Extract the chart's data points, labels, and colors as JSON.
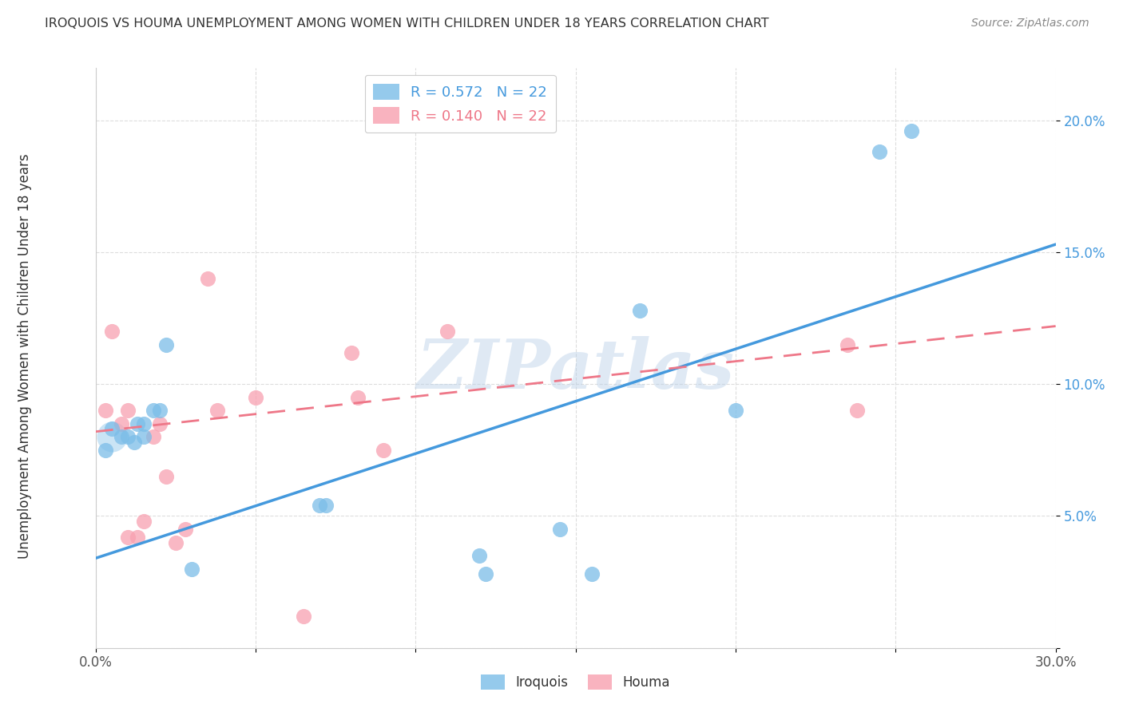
{
  "title": "IROQUOIS VS HOUMA UNEMPLOYMENT AMONG WOMEN WITH CHILDREN UNDER 18 YEARS CORRELATION CHART",
  "source": "Source: ZipAtlas.com",
  "ylabel": "Unemployment Among Women with Children Under 18 years",
  "watermark": "ZIPatlas",
  "xlim": [
    0.0,
    0.3
  ],
  "ylim": [
    0.0,
    0.22
  ],
  "iroquois_R": 0.572,
  "iroquois_N": 22,
  "houma_R": 0.14,
  "houma_N": 22,
  "iroquois_color": "#7bbde8",
  "houma_color": "#f8a0b0",
  "iroquois_line_color": "#4499dd",
  "houma_line_color": "#ee7788",
  "background_color": "#ffffff",
  "grid_color": "#dddddd",
  "iroquois_line_x0": 0.0,
  "iroquois_line_y0": 0.034,
  "iroquois_line_x1": 0.3,
  "iroquois_line_y1": 0.153,
  "houma_line_x0": 0.0,
  "houma_line_y0": 0.082,
  "houma_line_x1": 0.3,
  "houma_line_y1": 0.122,
  "iroquois_x": [
    0.003,
    0.005,
    0.008,
    0.01,
    0.012,
    0.013,
    0.015,
    0.015,
    0.018,
    0.02,
    0.022,
    0.03,
    0.07,
    0.072,
    0.12,
    0.122,
    0.145,
    0.155,
    0.17,
    0.2,
    0.245,
    0.255
  ],
  "iroquois_y": [
    0.075,
    0.083,
    0.08,
    0.08,
    0.078,
    0.085,
    0.08,
    0.085,
    0.09,
    0.09,
    0.115,
    0.03,
    0.054,
    0.054,
    0.035,
    0.028,
    0.045,
    0.028,
    0.128,
    0.09,
    0.188,
    0.196
  ],
  "houma_x": [
    0.003,
    0.005,
    0.008,
    0.01,
    0.01,
    0.013,
    0.015,
    0.018,
    0.02,
    0.022,
    0.025,
    0.028,
    0.035,
    0.038,
    0.05,
    0.065,
    0.08,
    0.082,
    0.09,
    0.11,
    0.235,
    0.238
  ],
  "houma_y": [
    0.09,
    0.12,
    0.085,
    0.09,
    0.042,
    0.042,
    0.048,
    0.08,
    0.085,
    0.065,
    0.04,
    0.045,
    0.14,
    0.09,
    0.095,
    0.012,
    0.112,
    0.095,
    0.075,
    0.12,
    0.115,
    0.09
  ]
}
